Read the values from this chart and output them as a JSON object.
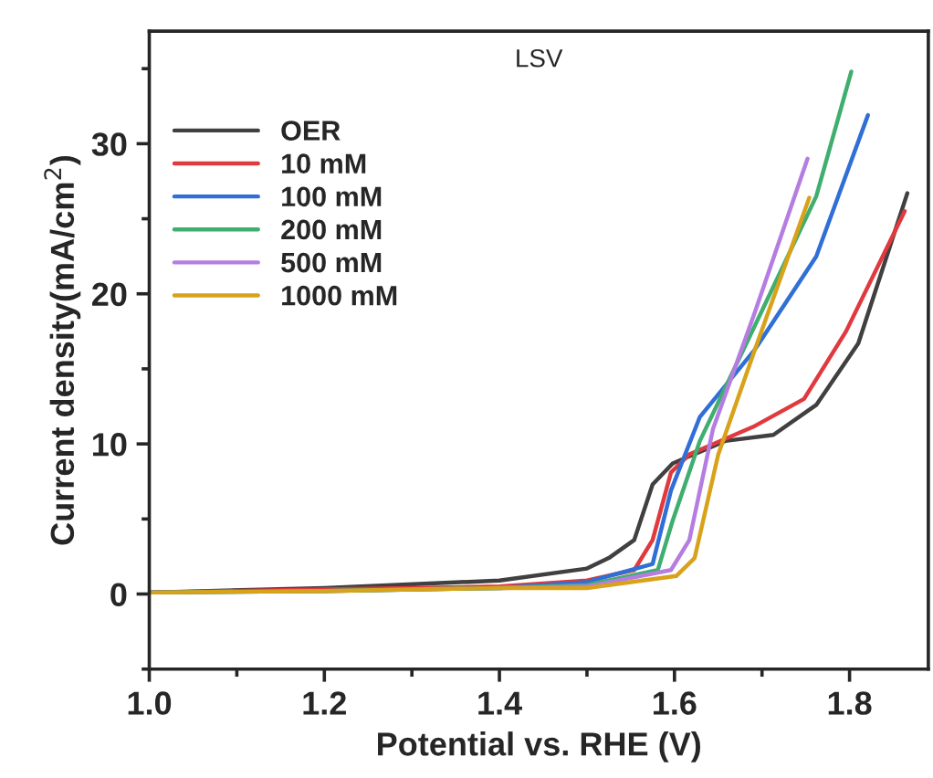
{
  "chart_data": {
    "type": "line",
    "title": "LSV",
    "xlabel": "Potential vs. RHE (V)",
    "ylabel": "Current density(mA/cm$^{2}$)",
    "xlim": [
      1.0,
      1.89
    ],
    "ylim": [
      -5,
      37.5
    ],
    "xticks": [
      {
        "value": 1.0,
        "label": "1.0"
      },
      1.2,
      1.4,
      1.6,
      1.8
    ],
    "yticks": [
      0,
      10,
      20,
      30
    ],
    "grid": false,
    "legend": "top left",
    "marker": "none",
    "line_style": "solid",
    "series": [
      {
        "name": "OER",
        "color": "#404040",
        "x": [
          1.0,
          1.2,
          1.4,
          1.5,
          1.525,
          1.554,
          1.575,
          1.598,
          1.658,
          1.713,
          1.762,
          1.81,
          1.866
        ],
        "values": [
          0.1,
          0.4,
          0.9,
          1.7,
          2.4,
          3.6,
          7.3,
          8.7,
          10.2,
          10.6,
          12.6,
          16.7,
          26.7
        ]
      },
      {
        "name": "10 mM",
        "color": "#e0393e",
        "x": [
          1.0,
          1.2,
          1.4,
          1.5,
          1.554,
          1.575,
          1.596,
          1.617,
          1.692,
          1.748,
          1.796,
          1.863
        ],
        "values": [
          0.1,
          0.3,
          0.5,
          0.9,
          1.6,
          3.6,
          8.1,
          9.3,
          11.2,
          13.0,
          17.5,
          25.5
        ]
      },
      {
        "name": "100 mM",
        "color": "#2f6fd6",
        "x": [
          1.0,
          1.2,
          1.4,
          1.5,
          1.575,
          1.596,
          1.629,
          1.692,
          1.762,
          1.821
        ],
        "values": [
          0.1,
          0.2,
          0.4,
          0.8,
          2.0,
          6.9,
          11.8,
          16.3,
          22.5,
          31.9
        ]
      },
      {
        "name": "200 mM",
        "color": "#3fae6e",
        "x": [
          1.0,
          1.2,
          1.4,
          1.5,
          1.581,
          1.598,
          1.629,
          1.692,
          1.762,
          1.802
        ],
        "values": [
          0.1,
          0.2,
          0.4,
          0.6,
          1.6,
          4.9,
          10.2,
          17.9,
          26.5,
          34.8
        ]
      },
      {
        "name": "500 mM",
        "color": "#b57de0",
        "x": [
          1.4,
          1.5,
          1.596,
          1.617,
          1.644,
          1.692,
          1.752
        ],
        "values": [
          0.4,
          0.5,
          1.6,
          3.6,
          11.0,
          18.8,
          29.0
        ]
      },
      {
        "name": "1000 mM",
        "color": "#d8a21a",
        "x": [
          1.0,
          1.2,
          1.4,
          1.5,
          1.602,
          1.623,
          1.65,
          1.692,
          1.754
        ],
        "values": [
          0.1,
          0.2,
          0.4,
          0.4,
          1.2,
          2.4,
          9.3,
          16.3,
          26.4
        ]
      }
    ]
  }
}
